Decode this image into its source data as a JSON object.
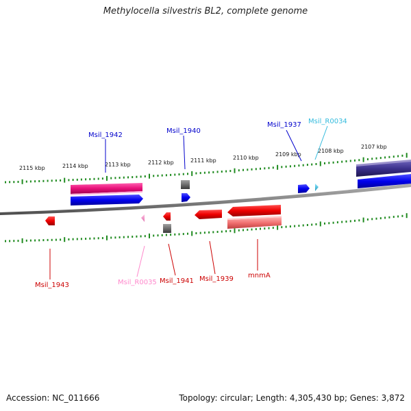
{
  "title": "Methylocella silvestris BL2, complete genome",
  "footer": {
    "accession": "Accession: NC_011666",
    "summary": "Topology: circular; Length: 4,305,430 bp; Genes: 3,872"
  },
  "colors": {
    "backbone": "#8a8a8a",
    "tick": "#1f8a1f",
    "cds_red": "#ee0000",
    "cds_blue": "#0000ee",
    "pseudo_gray": "#6e6e6e",
    "ncrna_cyan": "#33ccee",
    "ncrna_pink": "#ff88cc",
    "hit_magenta": "#e8107a",
    "hit_navy": "#3a2f8a",
    "hit_salmon": "#f07070"
  },
  "ticks": {
    "labels": [
      "2115 kbp",
      "2114 kbp",
      "2113 kbp",
      "2112 kbp",
      "2111 kbp",
      "2110 kbp",
      "2109 kbp",
      "2108 kbp",
      "2107 kbp"
    ]
  },
  "genes": {
    "top": [
      {
        "name": "Msil_1942",
        "color": "#0000cc"
      },
      {
        "name": "Msil_1940",
        "color": "#0000cc"
      },
      {
        "name": "Msil_1937",
        "color": "#0000cc"
      },
      {
        "name": "Msil_R0034",
        "color": "#33bbdd"
      }
    ],
    "bottom": [
      {
        "name": "Msil_1943",
        "color": "#cc0000"
      },
      {
        "name": "Msil_R0035",
        "color": "#ff88cc"
      },
      {
        "name": "Msil_1941",
        "color": "#cc0000"
      },
      {
        "name": "Msil_1939",
        "color": "#cc0000"
      },
      {
        "name": "mnmA",
        "color": "#cc0000"
      }
    ]
  }
}
